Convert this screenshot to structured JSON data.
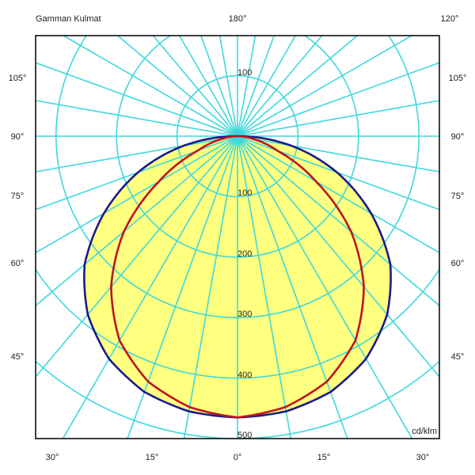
{
  "chart_data": {
    "type": "polar-line",
    "title": "Gamman Kulmat",
    "unit": "cd/klm",
    "radial_ticks_top": [
      "100"
    ],
    "radial_ticks": [
      "100",
      "200",
      "300",
      "400",
      "500"
    ],
    "top_angle_labels": [
      "180°",
      "120°"
    ],
    "side_angle_labels": [
      "105°",
      "90°",
      "75°",
      "60°",
      "45°"
    ],
    "bottom_angle_labels": [
      "30°",
      "15°",
      "0°",
      "15°",
      "30°"
    ],
    "grid": true,
    "rmax": 800,
    "angles": [
      0,
      10,
      20,
      30,
      40,
      50,
      60,
      70,
      80,
      90
    ],
    "series": [
      {
        "color": "#1a1a8c",
        "fill": "#ffff80",
        "values": [
          465,
          462,
          450,
          425,
          385,
          330,
          255,
          175,
          90,
          0
        ]
      },
      {
        "color": "#c0141e",
        "values": [
          465,
          455,
          432,
          390,
          325,
          245,
          150,
          70,
          25,
          0
        ]
      }
    ],
    "colors": {
      "grid": "#3fd8dc",
      "frame": "#000000"
    }
  }
}
